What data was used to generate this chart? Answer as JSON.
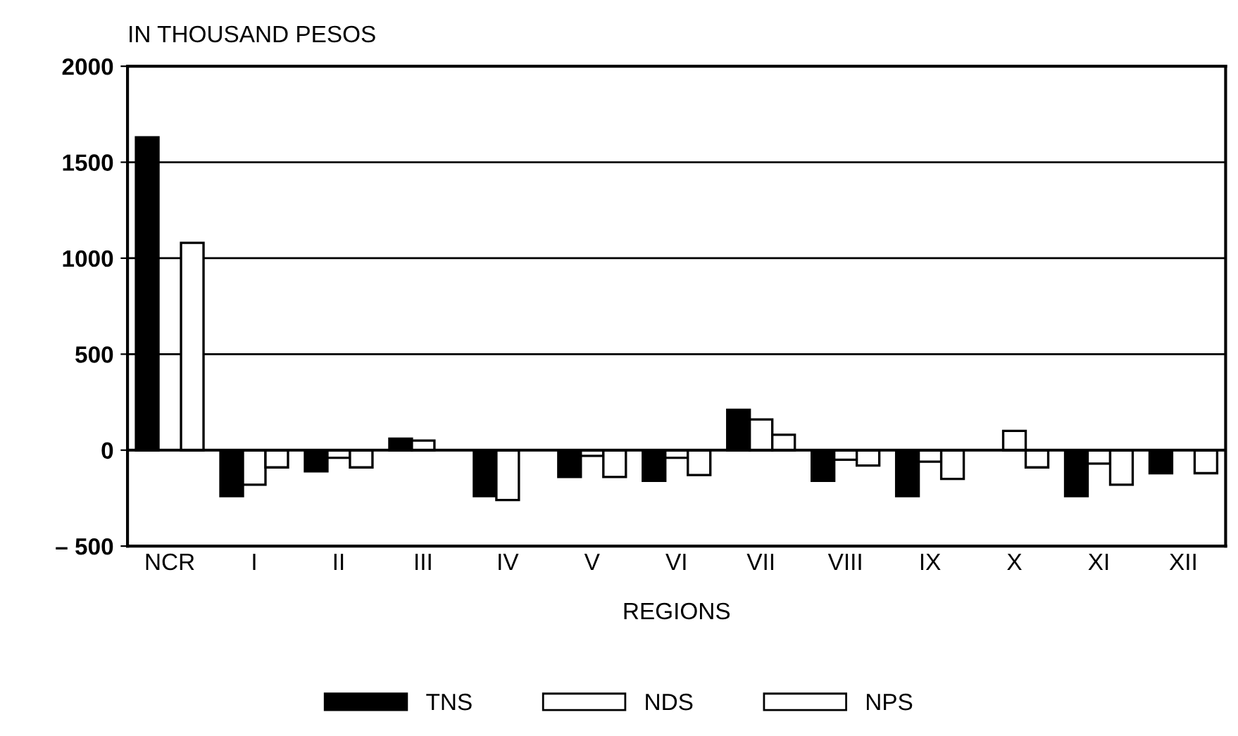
{
  "chart_data": {
    "type": "bar",
    "ylabel": "IN THOUSAND PESOS",
    "xlabel": "REGIONS",
    "categories": [
      "NCR",
      "I",
      "II",
      "III",
      "IV",
      "V",
      "VI",
      "VII",
      "VIII",
      "IX",
      "X",
      "XI",
      "XII"
    ],
    "series": [
      {
        "name": "TNS",
        "color": "#000000",
        "values": [
          1630,
          -240,
          -110,
          60,
          -240,
          -140,
          -160,
          210,
          -160,
          -240,
          null,
          -240,
          -120
        ]
      },
      {
        "name": "NDS",
        "color": "#ffffff",
        "values": [
          null,
          -180,
          -40,
          50,
          -260,
          -30,
          -40,
          160,
          -50,
          -60,
          100,
          -70,
          null
        ]
      },
      {
        "name": "NPS",
        "color": "#ffffff",
        "values": [
          1080,
          -90,
          -90,
          null,
          null,
          -140,
          -130,
          80,
          -80,
          -150,
          -90,
          -180,
          -120
        ]
      }
    ],
    "ylim": [
      -500,
      2000
    ],
    "yticks": [
      {
        "value": -500,
        "label": "– 500"
      },
      0,
      500,
      1000,
      1500,
      2000
    ],
    "grid": "y",
    "legend": "bottom"
  }
}
